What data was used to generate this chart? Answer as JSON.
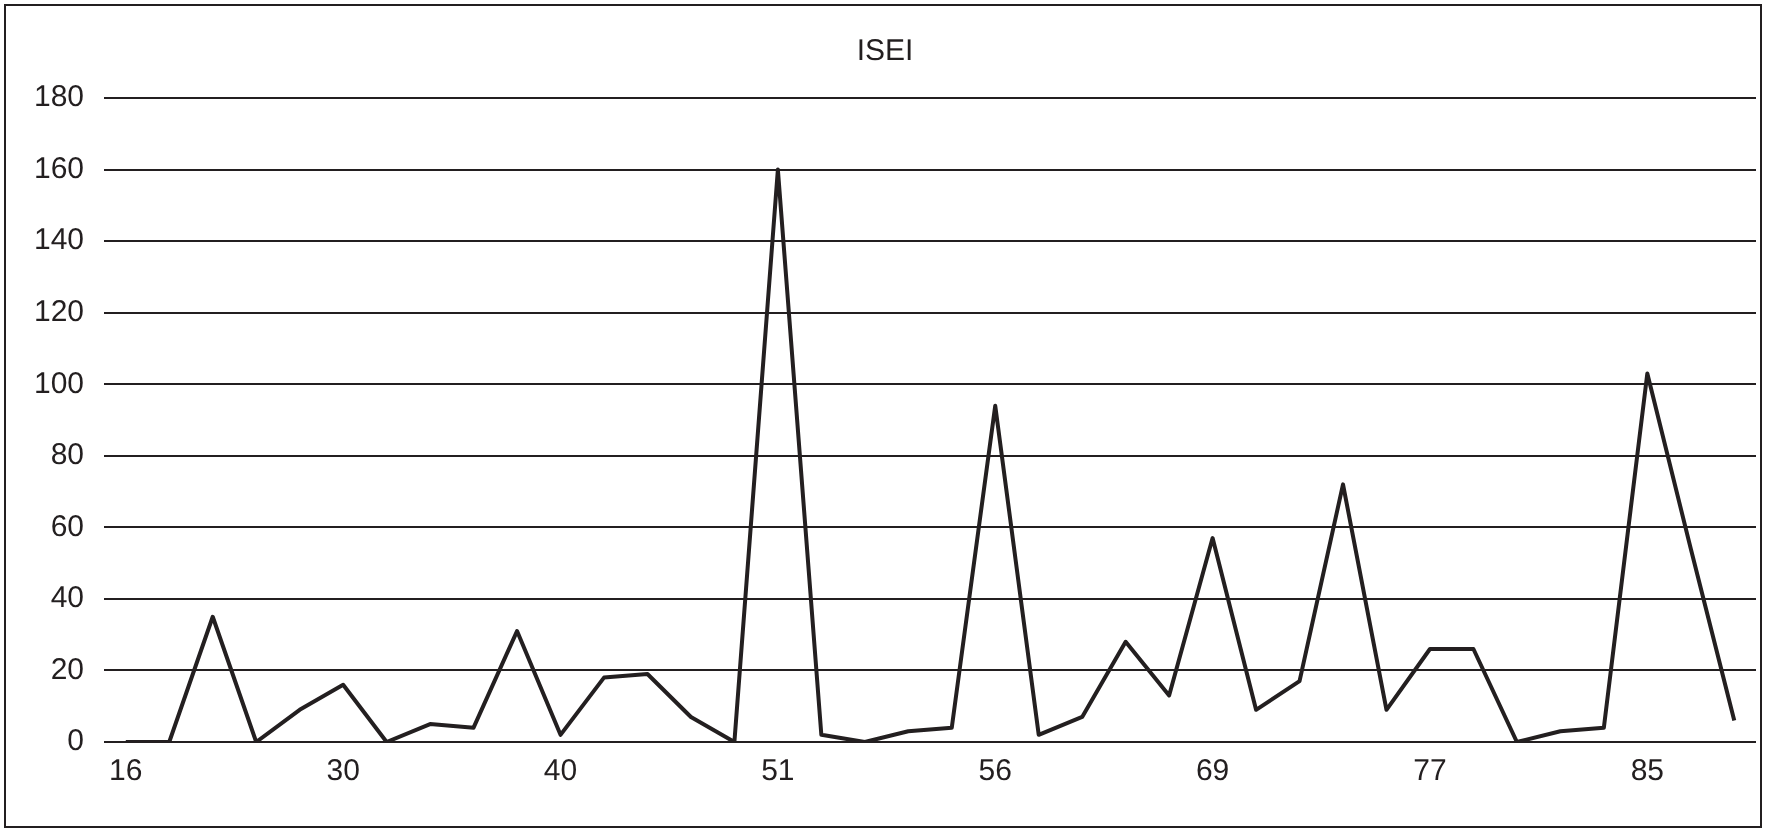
{
  "chart_data": {
    "type": "line",
    "title": "ISEI",
    "categories": [
      "16",
      null,
      null,
      null,
      null,
      "30",
      null,
      null,
      null,
      null,
      "40",
      null,
      null,
      null,
      null,
      "51",
      null,
      null,
      null,
      null,
      "56",
      null,
      null,
      null,
      null,
      "69",
      null,
      null,
      null,
      null,
      "77",
      null,
      null,
      null,
      null,
      "85",
      null,
      null
    ],
    "series": [
      {
        "color": "#231f20",
        "values": [
          0,
          0,
          35,
          0,
          9,
          16,
          0,
          5,
          4,
          31,
          2,
          18,
          19,
          7,
          0,
          160,
          2,
          0,
          3,
          4,
          94,
          2,
          7,
          28,
          13,
          57,
          9,
          17,
          72,
          9,
          26,
          26,
          0,
          3,
          4,
          103,
          54,
          6
        ]
      }
    ],
    "ylim": [
      0,
      180
    ],
    "yticks": [
      0,
      20,
      40,
      60,
      80,
      100,
      120,
      140,
      160,
      180
    ],
    "grid": "y",
    "legend": false,
    "marker": "none",
    "line_style": "solid"
  }
}
